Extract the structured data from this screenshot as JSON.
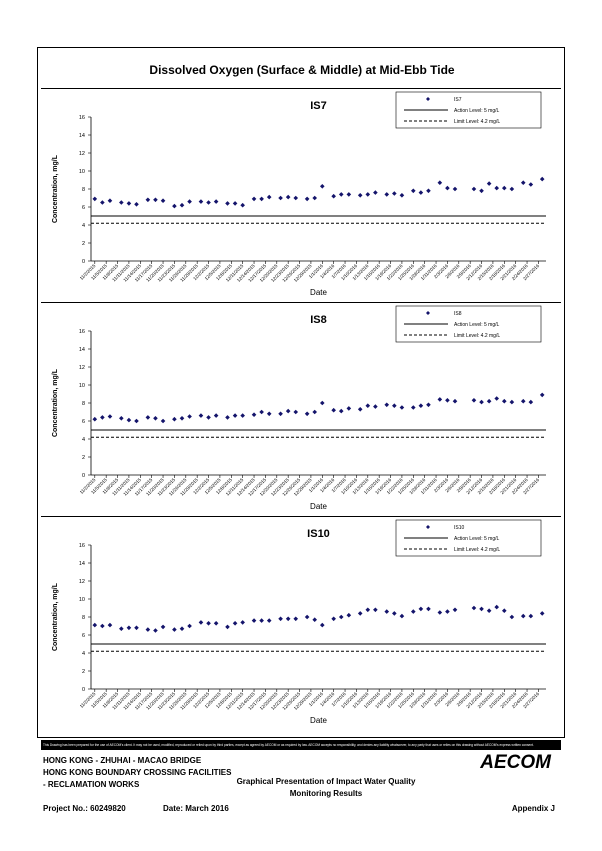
{
  "main_title": "Dissolved Oxygen (Surface & Middle) at Mid-Ebb Tide",
  "footer": {
    "line1": "HONG KONG - ZHUHAI - MACAO BRIDGE",
    "line2": "HONG KONG BOUNDARY CROSSING FACILITIES",
    "line3": "- RECLAMATION WORKS",
    "center_title_1": "Graphical Presentation of Impact Water Quality",
    "center_title_2": "Monitoring Results",
    "project": "Project No.: 60249820",
    "date": "Date: March 2016",
    "appendix": "Appendix J",
    "logo": "AECOM"
  },
  "disclaimer": "This Drawing has been prepared for the use of AECOM's client. It may not be used, modified, reproduced or relied upon by third parties, except as agreed by AECOM or as required by law. AECOM accepts no responsibility, and denies any liability whatsoever, to any party that uses or relies on this drawing without AECOM's express written consent.",
  "chart_data": [
    {
      "type": "scatter",
      "title": "IS7",
      "xlabel": "Date",
      "ylabel": "Concentration, mg/L",
      "ylim": [
        0,
        16
      ],
      "yticks": [
        0,
        2,
        4,
        6,
        8,
        10,
        12,
        14,
        16
      ],
      "grid": false,
      "legend_placement": "top-right",
      "legend": [
        "IS7",
        "Action Level: 5 mg/L",
        "Limit Level: 4.2 mg/L"
      ],
      "action_level": 5,
      "limit_level": 4.2,
      "xticks": [
        "11/2/2015",
        "11/5/2015",
        "11/8/2015",
        "11/11/2015",
        "11/14/2015",
        "11/17/2015",
        "11/20/2015",
        "11/23/2015",
        "11/26/2015",
        "11/29/2015",
        "12/2/2015",
        "12/5/2015",
        "12/8/2015",
        "12/11/2015",
        "12/14/2015",
        "12/17/2015",
        "12/20/2015",
        "12/23/2015",
        "12/26/2015",
        "12/29/2015",
        "1/1/2016",
        "1/4/2016",
        "1/7/2016",
        "1/10/2016",
        "1/13/2016",
        "1/16/2016",
        "1/19/2016",
        "1/22/2016",
        "1/25/2016",
        "1/28/2016",
        "1/31/2016",
        "2/3/2016",
        "2/6/2016",
        "2/9/2016",
        "2/12/2016",
        "2/15/2016",
        "2/18/2016",
        "2/21/2016",
        "2/24/2016",
        "2/27/2016"
      ],
      "series": [
        {
          "name": "IS7",
          "x": [
            "11/2/2015",
            "11/4/2015",
            "11/6/2015",
            "11/9/2015",
            "11/11/2015",
            "11/13/2015",
            "11/16/2015",
            "11/18/2015",
            "11/20/2015",
            "11/23/2015",
            "11/25/2015",
            "11/27/2015",
            "11/30/2015",
            "12/2/2015",
            "12/4/2015",
            "12/7/2015",
            "12/9/2015",
            "12/11/2015",
            "12/14/2015",
            "12/16/2015",
            "12/18/2015",
            "12/21/2015",
            "12/23/2015",
            "12/25/2015",
            "12/28/2015",
            "12/30/2015",
            "1/1/2016",
            "1/4/2016",
            "1/6/2016",
            "1/8/2016",
            "1/11/2016",
            "1/13/2016",
            "1/15/2016",
            "1/18/2016",
            "1/20/2016",
            "1/22/2016",
            "1/25/2016",
            "1/27/2016",
            "1/29/2016",
            "2/1/2016",
            "2/3/2016",
            "2/5/2016",
            "2/10/2016",
            "2/12/2016",
            "2/14/2016",
            "2/16/2016",
            "2/18/2016",
            "2/20/2016",
            "2/23/2016",
            "2/25/2016",
            "2/28/2016"
          ],
          "values": [
            6.9,
            6.5,
            6.7,
            6.5,
            6.4,
            6.3,
            6.8,
            6.8,
            6.7,
            6.1,
            6.2,
            6.6,
            6.6,
            6.5,
            6.6,
            6.4,
            6.4,
            6.2,
            6.9,
            6.9,
            7.1,
            7.0,
            7.1,
            7.0,
            6.9,
            7.0,
            8.3,
            7.2,
            7.4,
            7.4,
            7.3,
            7.4,
            7.6,
            7.4,
            7.5,
            7.3,
            7.8,
            7.6,
            7.8,
            8.7,
            8.1,
            8.0,
            8.0,
            7.8,
            8.6,
            8.1,
            8.1,
            8.0,
            8.7,
            8.5,
            9.1
          ]
        }
      ]
    },
    {
      "type": "scatter",
      "title": "IS8",
      "xlabel": "Date",
      "ylabel": "Concentration, mg/L",
      "ylim": [
        0,
        16
      ],
      "yticks": [
        0,
        2,
        4,
        6,
        8,
        10,
        12,
        14,
        16
      ],
      "grid": false,
      "legend_placement": "top-right",
      "legend": [
        "IS8",
        "Action Level: 5 mg/L",
        "Limit Level: 4.2 mg/L"
      ],
      "action_level": 5,
      "limit_level": 4.2,
      "xticks": [
        "11/2/2015",
        "11/5/2015",
        "11/8/2015",
        "11/11/2015",
        "11/14/2015",
        "11/17/2015",
        "11/20/2015",
        "11/23/2015",
        "11/26/2015",
        "11/29/2015",
        "12/2/2015",
        "12/5/2015",
        "12/8/2015",
        "12/11/2015",
        "12/14/2015",
        "12/17/2015",
        "12/20/2015",
        "12/23/2015",
        "12/26/2015",
        "12/29/2015",
        "1/1/2016",
        "1/4/2016",
        "1/7/2016",
        "1/10/2016",
        "1/13/2016",
        "1/16/2016",
        "1/19/2016",
        "1/22/2016",
        "1/25/2016",
        "1/28/2016",
        "1/31/2016",
        "2/3/2016",
        "2/6/2016",
        "2/9/2016",
        "2/12/2016",
        "2/15/2016",
        "2/18/2016",
        "2/21/2016",
        "2/24/2016",
        "2/27/2016"
      ],
      "series": [
        {
          "name": "IS8",
          "x": [
            "11/2/2015",
            "11/4/2015",
            "11/6/2015",
            "11/9/2015",
            "11/11/2015",
            "11/13/2015",
            "11/16/2015",
            "11/18/2015",
            "11/20/2015",
            "11/23/2015",
            "11/25/2015",
            "11/27/2015",
            "11/30/2015",
            "12/2/2015",
            "12/4/2015",
            "12/7/2015",
            "12/9/2015",
            "12/11/2015",
            "12/14/2015",
            "12/16/2015",
            "12/18/2015",
            "12/21/2015",
            "12/23/2015",
            "12/25/2015",
            "12/28/2015",
            "12/30/2015",
            "1/1/2016",
            "1/4/2016",
            "1/6/2016",
            "1/8/2016",
            "1/11/2016",
            "1/13/2016",
            "1/15/2016",
            "1/18/2016",
            "1/20/2016",
            "1/22/2016",
            "1/25/2016",
            "1/27/2016",
            "1/29/2016",
            "2/1/2016",
            "2/3/2016",
            "2/5/2016",
            "2/10/2016",
            "2/12/2016",
            "2/14/2016",
            "2/16/2016",
            "2/18/2016",
            "2/20/2016",
            "2/23/2016",
            "2/25/2016",
            "2/28/2016"
          ],
          "values": [
            6.2,
            6.4,
            6.5,
            6.3,
            6.1,
            6.0,
            6.4,
            6.3,
            6.0,
            6.2,
            6.3,
            6.5,
            6.6,
            6.4,
            6.6,
            6.4,
            6.6,
            6.6,
            6.7,
            7.0,
            6.8,
            6.8,
            7.1,
            7.0,
            6.8,
            7.0,
            8.0,
            7.2,
            7.1,
            7.4,
            7.3,
            7.7,
            7.6,
            7.8,
            7.7,
            7.5,
            7.5,
            7.7,
            7.8,
            8.4,
            8.3,
            8.2,
            8.3,
            8.1,
            8.2,
            8.5,
            8.2,
            8.1,
            8.2,
            8.1,
            8.9
          ]
        }
      ]
    },
    {
      "type": "scatter",
      "title": "IS10",
      "xlabel": "Date",
      "ylabel": "Concentration, mg/L",
      "ylim": [
        0,
        16
      ],
      "yticks": [
        0,
        2,
        4,
        6,
        8,
        10,
        12,
        14,
        16
      ],
      "grid": false,
      "legend_placement": "top-right",
      "legend": [
        "IS10",
        "Action Level: 5 mg/L",
        "Limit Level: 4.2 mg/L"
      ],
      "action_level": 5,
      "limit_level": 4.2,
      "xticks": [
        "11/2/2015",
        "11/5/2015",
        "11/8/2015",
        "11/11/2015",
        "11/14/2015",
        "11/17/2015",
        "11/20/2015",
        "11/23/2015",
        "11/26/2015",
        "11/29/2015",
        "12/2/2015",
        "12/5/2015",
        "12/8/2015",
        "12/11/2015",
        "12/14/2015",
        "12/17/2015",
        "12/20/2015",
        "12/23/2015",
        "12/26/2015",
        "12/29/2015",
        "1/1/2016",
        "1/4/2016",
        "1/7/2016",
        "1/10/2016",
        "1/13/2016",
        "1/16/2016",
        "1/19/2016",
        "1/22/2016",
        "1/25/2016",
        "1/28/2016",
        "1/31/2016",
        "2/3/2016",
        "2/6/2016",
        "2/9/2016",
        "2/12/2016",
        "2/15/2016",
        "2/18/2016",
        "2/21/2016",
        "2/24/2016",
        "2/27/2016"
      ],
      "series": [
        {
          "name": "IS10",
          "x": [
            "11/2/2015",
            "11/4/2015",
            "11/6/2015",
            "11/9/2015",
            "11/11/2015",
            "11/13/2015",
            "11/16/2015",
            "11/18/2015",
            "11/20/2015",
            "11/23/2015",
            "11/25/2015",
            "11/27/2015",
            "11/30/2015",
            "12/2/2015",
            "12/4/2015",
            "12/7/2015",
            "12/9/2015",
            "12/11/2015",
            "12/14/2015",
            "12/16/2015",
            "12/18/2015",
            "12/21/2015",
            "12/23/2015",
            "12/25/2015",
            "12/28/2015",
            "12/30/2015",
            "1/1/2016",
            "1/4/2016",
            "1/6/2016",
            "1/8/2016",
            "1/11/2016",
            "1/13/2016",
            "1/15/2016",
            "1/18/2016",
            "1/20/2016",
            "1/22/2016",
            "1/25/2016",
            "1/27/2016",
            "1/29/2016",
            "2/1/2016",
            "2/3/2016",
            "2/5/2016",
            "2/10/2016",
            "2/12/2016",
            "2/14/2016",
            "2/16/2016",
            "2/18/2016",
            "2/20/2016",
            "2/23/2016",
            "2/25/2016",
            "2/28/2016"
          ],
          "values": [
            7.1,
            7.0,
            7.1,
            6.7,
            6.8,
            6.8,
            6.6,
            6.5,
            6.9,
            6.6,
            6.7,
            7.0,
            7.4,
            7.3,
            7.3,
            6.9,
            7.3,
            7.4,
            7.6,
            7.6,
            7.6,
            7.8,
            7.8,
            7.8,
            8.0,
            7.7,
            7.1,
            7.8,
            8.0,
            8.2,
            8.4,
            8.8,
            8.8,
            8.6,
            8.4,
            8.1,
            8.6,
            8.9,
            8.9,
            8.5,
            8.6,
            8.8,
            9.0,
            8.9,
            8.7,
            9.1,
            8.7,
            8.0,
            8.1,
            8.1,
            8.4
          ]
        }
      ]
    }
  ]
}
